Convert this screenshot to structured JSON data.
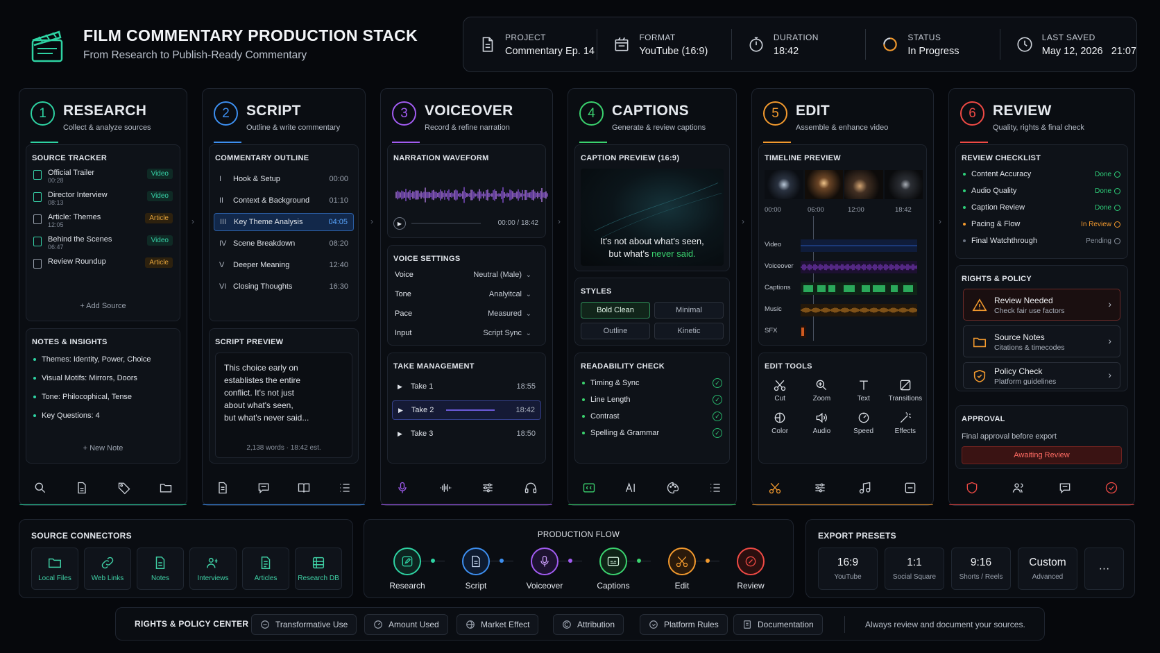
{
  "header": {
    "title": "FILM COMMENTARY PRODUCTION STACK",
    "subtitle": "From Research to Publish-Ready Commentary"
  },
  "meta": [
    {
      "label": "PROJECT",
      "value": "Commentary Ep. 14",
      "icon": "document-icon"
    },
    {
      "label": "FORMAT",
      "value": "YouTube (16:9)",
      "icon": "format-icon"
    },
    {
      "label": "DURATION",
      "value": "18:42",
      "icon": "stopwatch-icon"
    },
    {
      "label": "STATUS",
      "value": "In Progress",
      "icon": "progress-icon"
    },
    {
      "label": "LAST SAVED",
      "value": "May 12, 2026   21:07",
      "icon": "clock-icon"
    }
  ],
  "colors": {
    "research": "#2ed3a3",
    "script": "#3d8ff0",
    "voiceover": "#a25cf2",
    "captions": "#3bd36f",
    "edit": "#f39a2e",
    "review": "#f04a45"
  },
  "research": {
    "num": "1",
    "title": "RESEARCH",
    "sub": "Collect & analyze sources",
    "tracker_title": "SOURCE TRACKER",
    "sources": [
      {
        "name": "Official Trailer",
        "time": "00:28",
        "tag": "Video"
      },
      {
        "name": "Director Interview",
        "time": "08:13",
        "tag": "Video"
      },
      {
        "name": "Article: Themes",
        "time": "12:05",
        "tag": "Article"
      },
      {
        "name": "Behind the Scenes",
        "time": "06:47",
        "tag": "Video"
      },
      {
        "name": "Review Roundup",
        "time": "",
        "tag": "Article"
      }
    ],
    "add_source": "+ Add Source",
    "notes_title": "NOTES & INSIGHTS",
    "notes": [
      "Themes: Identity, Power, Choice",
      "Visual Motifs: Mirrors, Doors",
      "Tone: Philocophical, Tense",
      "Key Questions: 4"
    ],
    "new_note": "+ New Note"
  },
  "script": {
    "num": "2",
    "title": "SCRIPT",
    "sub": "Outline & write commentary",
    "outline_title": "COMMENTARY OUTLINE",
    "outline": [
      {
        "n": "I",
        "t": "Hook & Setup",
        "time": "00:00"
      },
      {
        "n": "II",
        "t": "Context & Background",
        "time": "01:10"
      },
      {
        "n": "III",
        "t": "Key Theme Analysis",
        "time": "04:05"
      },
      {
        "n": "IV",
        "t": "Scene Breakdown",
        "time": "08:20"
      },
      {
        "n": "V",
        "t": "Deeper Meaning",
        "time": "12:40"
      },
      {
        "n": "VI",
        "t": "Closing Thoughts",
        "time": "16:30"
      }
    ],
    "preview_title": "SCRIPT PREVIEW",
    "preview_lines": [
      "This choice early on",
      "establistes the entire",
      "conflict. It's not just",
      "about what's seen,",
      "but what's never said..."
    ],
    "preview_meta": "2,138 words  ·  18:42 est."
  },
  "voiceover": {
    "num": "3",
    "title": "VOICEOVER",
    "sub": "Record & refine narration",
    "wave_title": "NARRATION WAVEFORM",
    "wave_time": "00:00 / 18:42",
    "settings_title": "VOICE SETTINGS",
    "settings": [
      {
        "k": "Voice",
        "v": "Neutral (Male)"
      },
      {
        "k": "Tone",
        "v": "Analyitcal"
      },
      {
        "k": "Pace",
        "v": "Measured"
      },
      {
        "k": "Input",
        "v": "Script Sync"
      }
    ],
    "takes_title": "TAKE MANAGEMENT",
    "takes": [
      {
        "name": "Take 1",
        "time": "18:55"
      },
      {
        "name": "Take 2",
        "time": "18:42"
      },
      {
        "name": "Take 3",
        "time": "18:50"
      }
    ]
  },
  "captions": {
    "num": "4",
    "title": "CAPTIONS",
    "sub": "Generate & review captions",
    "preview_title": "CAPTION PREVIEW (16:9)",
    "caption_line1": "It's not about what's seen,",
    "caption_line2a": "but what's ",
    "caption_line2b": "never said.",
    "styles_title": "STYLES",
    "styles": [
      "Bold Clean",
      "Minimal",
      "Outline",
      "Kinetic"
    ],
    "read_title": "READABILITY CHECK",
    "checks": [
      "Timing & Sync",
      "Line Length",
      "Contrast",
      "Spelling & Grammar"
    ]
  },
  "edit": {
    "num": "5",
    "title": "EDIT",
    "sub": "Assemble & enhance video",
    "timeline_title": "TIMELINE PREVIEW",
    "ticks": [
      "00:00",
      "06:00",
      "12:00",
      "18:42"
    ],
    "tracks": [
      "Video",
      "Voiceover",
      "Captions",
      "Music",
      "SFX"
    ],
    "tools_title": "EDIT TOOLS",
    "tools": [
      "Cut",
      "Zoom",
      "Text",
      "Transitions",
      "Color",
      "Audio",
      "Speed",
      "Effects"
    ]
  },
  "review": {
    "num": "6",
    "title": "REVIEW",
    "sub": "Quality, rights & final check",
    "checklist_title": "REVIEW CHECKLIST",
    "checklist": [
      {
        "t": "Content Accuracy",
        "s": "Done"
      },
      {
        "t": "Audio Quality",
        "s": "Done"
      },
      {
        "t": "Caption Review",
        "s": "Done"
      },
      {
        "t": "Pacing & Flow",
        "s": "In Review"
      },
      {
        "t": "Final Watchthrough",
        "s": "Pending"
      }
    ],
    "rights_title": "RIGHTS & POLICY",
    "rights": [
      {
        "t": "Review Needed",
        "s": "Check fair use factors"
      },
      {
        "t": "Source Notes",
        "s": "Citations & timecodes"
      },
      {
        "t": "Policy Check",
        "s": "Platform guidelines"
      }
    ],
    "approval_title": "APPROVAL",
    "approval_text": "Final approval before export",
    "approval_btn": "Awaiting Review"
  },
  "connectors": {
    "title": "SOURCE CONNECTORS",
    "items": [
      "Local Files",
      "Web Links",
      "Notes",
      "Interviews",
      "Articles",
      "Research DB"
    ]
  },
  "flow": {
    "title": "PRODUCTION FLOW",
    "steps": [
      "Research",
      "Script",
      "Voiceover",
      "Captions",
      "Edit",
      "Review"
    ]
  },
  "presets": {
    "title": "EXPORT PRESETS",
    "items": [
      {
        "v": "16:9",
        "l": "YouTube"
      },
      {
        "v": "1:1",
        "l": "Social Square"
      },
      {
        "v": "9:16",
        "l": "Shorts / Reels"
      },
      {
        "v": "Custom",
        "l": "Advanced"
      }
    ],
    "more": "···"
  },
  "rights_center": {
    "title": "RIGHTS & POLICY CENTER",
    "pills": [
      "Transformative Use",
      "Amount Used",
      "Market Effect",
      "Attribution",
      "Platform Rules",
      "Documentation"
    ],
    "note": "Always review and document your sources."
  }
}
